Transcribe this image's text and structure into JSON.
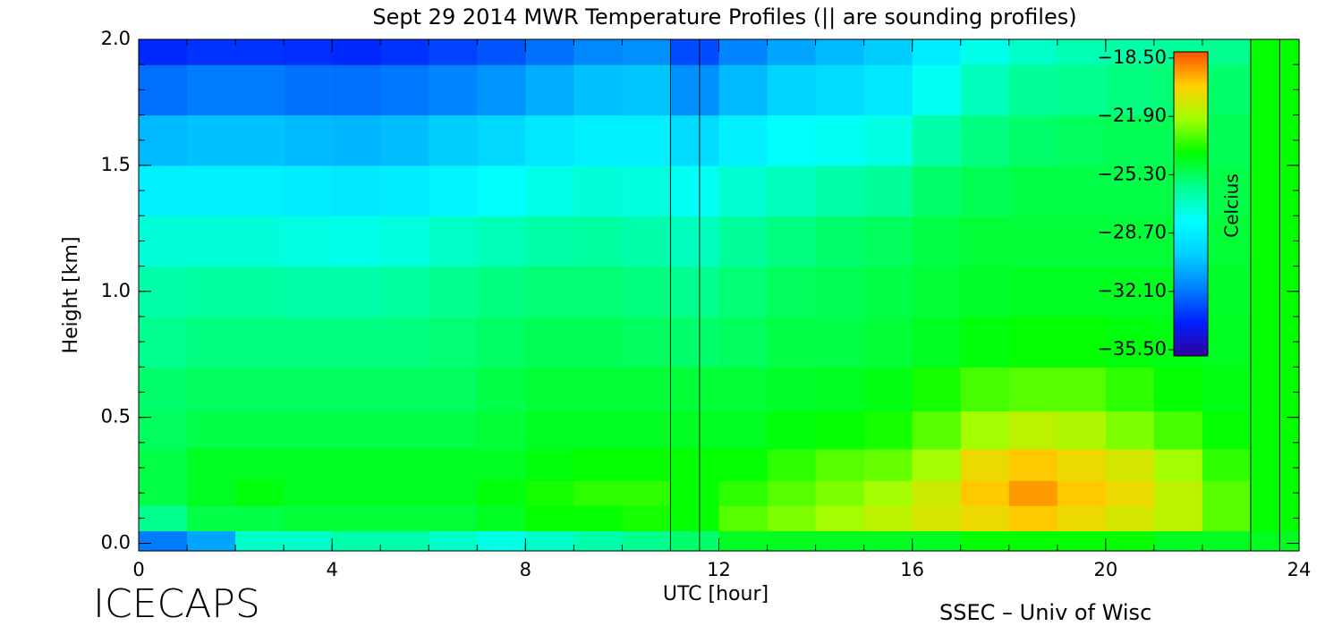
{
  "chart_data": {
    "type": "heatmap",
    "title": "Sept 29 2014 MWR Temperature Profiles (|| are sounding profiles)",
    "x_label": "UTC [hour]",
    "y_label": "Height [km]",
    "colorbar_label": "Celcius",
    "left_footer": "ICECAPS",
    "right_footer": "SSEC – Univ of Wisc",
    "xlim": [
      0,
      24
    ],
    "xticks": [
      0,
      4,
      8,
      12,
      16,
      20,
      24
    ],
    "xminorticks": [
      0,
      1,
      2,
      3,
      4,
      5,
      6,
      7,
      8,
      9,
      10,
      11,
      12,
      13,
      14,
      15,
      16,
      17,
      18,
      19,
      20,
      21,
      22,
      23,
      24
    ],
    "ylim": [
      -0.03,
      2.0
    ],
    "yticks": [
      {
        "value": 0,
        "label": "0.0"
      },
      0.5,
      {
        "value": 1,
        "label": "1.0"
      },
      1.5,
      {
        "value": 2,
        "label": "2.0"
      }
    ],
    "yminorticks": [
      0,
      0.1,
      0.2,
      0.3,
      0.4,
      0.5,
      0.6,
      0.7,
      0.8,
      0.9,
      1.0,
      1.1,
      1.2,
      1.3,
      1.4,
      1.5,
      1.6,
      1.7,
      1.8,
      1.9,
      2.0
    ],
    "clim": [
      -35.86,
      -18.14
    ],
    "cticks": [
      {
        "value": -18.5,
        "label": "−18.50"
      },
      {
        "value": -21.9,
        "label": "−21.90"
      },
      {
        "value": -25.3,
        "label": "−25.30"
      },
      {
        "value": -28.7,
        "label": "−28.70"
      },
      {
        "value": -32.1,
        "label": "−32.10"
      },
      {
        "value": -35.5,
        "label": "−35.50"
      }
    ],
    "colorscale": [
      "#3000a0",
      "#0020ff",
      "#0080ff",
      "#00d0ff",
      "#00ffff",
      "#00ff90",
      "#00ff00",
      "#a0ff00",
      "#ffd000",
      "#ff5000"
    ],
    "sounding_times": [
      11.0,
      11.6,
      23.0,
      23.6
    ],
    "x": [
      0.5,
      1.5,
      2.5,
      3.5,
      4.5,
      5.5,
      6.5,
      7.5,
      8.5,
      9.5,
      10.5,
      11.5,
      12.5,
      13.5,
      14.5,
      15.5,
      16.5,
      17.5,
      18.5,
      19.5,
      20.5,
      21.5,
      22.5,
      23.5
    ],
    "y": [
      0.0,
      0.1,
      0.2,
      0.3,
      0.45,
      0.6,
      0.8,
      1.0,
      1.2,
      1.4,
      1.6,
      1.8,
      2.0
    ],
    "values": [
      [
        -32,
        -31,
        -27,
        -27,
        -26.5,
        -26.5,
        -27,
        -27.5,
        -27,
        -26.5,
        -26,
        -25.5,
        -24.5,
        -24.5,
        -24.5,
        -24.5,
        -24.5,
        -24,
        -24,
        -24,
        -24,
        -24.5,
        -24.5,
        -24.5
      ],
      [
        -26,
        -25,
        -25,
        -24.8,
        -24.8,
        -24.8,
        -24.8,
        -24.5,
        -24,
        -24,
        -23.8,
        -24,
        -23,
        -22.5,
        -22,
        -21.5,
        -21,
        -20.5,
        -20,
        -20.5,
        -21,
        -21.5,
        -23,
        -24
      ],
      [
        -25,
        -24.5,
        -24.2,
        -24.5,
        -24.5,
        -24.5,
        -24.5,
        -24.2,
        -23.8,
        -23.5,
        -23.5,
        -24,
        -23.5,
        -23,
        -22.5,
        -22,
        -21.2,
        -20,
        -19.3,
        -20,
        -20.5,
        -21.5,
        -23,
        -24
      ],
      [
        -25,
        -24.5,
        -24.5,
        -24.5,
        -24.5,
        -24.5,
        -24.5,
        -24.5,
        -24.2,
        -24,
        -24,
        -24,
        -24,
        -23.5,
        -23,
        -22.8,
        -22,
        -20.5,
        -20,
        -20.5,
        -21,
        -22,
        -23.5,
        -24
      ],
      [
        -25.3,
        -25,
        -25,
        -25,
        -25,
        -25,
        -25,
        -24.8,
        -24.5,
        -24.5,
        -24.5,
        -24.5,
        -24.5,
        -24.2,
        -24,
        -23.8,
        -23,
        -22,
        -21.5,
        -21.8,
        -22.5,
        -23.2,
        -24,
        -24
      ],
      [
        -25.5,
        -25.3,
        -25.3,
        -25.3,
        -25.3,
        -25.3,
        -25.3,
        -25,
        -24.8,
        -24.8,
        -24.8,
        -24.8,
        -24.8,
        -24.6,
        -24.5,
        -24.3,
        -23.8,
        -23.2,
        -23,
        -23,
        -23.5,
        -24,
        -24.3,
        -24
      ],
      [
        -26,
        -25.8,
        -25.8,
        -25.8,
        -25.8,
        -25.8,
        -25.6,
        -25.4,
        -25.2,
        -25.2,
        -25.3,
        -25.5,
        -25.3,
        -25,
        -25,
        -24.8,
        -24.5,
        -24.2,
        -24,
        -24,
        -24.2,
        -24.3,
        -24.5,
        -24
      ],
      [
        -26.5,
        -26.3,
        -26.3,
        -26.5,
        -26.5,
        -26.3,
        -26,
        -25.8,
        -25.6,
        -25.6,
        -25.8,
        -26,
        -25.6,
        -25.3,
        -25.2,
        -25,
        -24.8,
        -24.6,
        -24.5,
        -24.5,
        -24.5,
        -24.5,
        -24.6,
        -24
      ],
      [
        -27.3,
        -27.3,
        -27.3,
        -27.5,
        -27.6,
        -27.4,
        -27,
        -26.7,
        -26.4,
        -26.3,
        -26.5,
        -26.8,
        -26.2,
        -25.8,
        -25.5,
        -25.3,
        -25,
        -24.8,
        -24.8,
        -24.8,
        -24.8,
        -24.8,
        -24.8,
        -24
      ],
      [
        -28.6,
        -28.6,
        -28.6,
        -28.8,
        -28.9,
        -28.7,
        -28.4,
        -28,
        -27.6,
        -27.3,
        -27.4,
        -27.8,
        -27.2,
        -26.8,
        -26.5,
        -26.2,
        -25.5,
        -25.2,
        -25,
        -25,
        -25,
        -25,
        -25,
        -24
      ],
      [
        -30.5,
        -30.3,
        -30.3,
        -30.5,
        -30.6,
        -30.4,
        -30,
        -29.6,
        -29,
        -28.6,
        -28.6,
        -29.5,
        -28.6,
        -28,
        -27.8,
        -27.5,
        -26.5,
        -25.8,
        -25.5,
        -25.3,
        -25.2,
        -25.2,
        -25.2,
        -24
      ],
      [
        -32.3,
        -32,
        -32,
        -32.2,
        -32.3,
        -32.1,
        -31.8,
        -31.4,
        -30.8,
        -30.3,
        -30.2,
        -31.5,
        -30.5,
        -29.8,
        -29.4,
        -29,
        -27.8,
        -26.8,
        -26.2,
        -26,
        -25.8,
        -25.6,
        -25.5,
        -24
      ],
      [
        -33.7,
        -33.5,
        -33.5,
        -33.6,
        -33.7,
        -33.5,
        -33.2,
        -32.8,
        -32.2,
        -31.7,
        -31.5,
        -33,
        -31.8,
        -31,
        -30.5,
        -30,
        -28.8,
        -27.6,
        -27,
        -26.6,
        -26.4,
        -26.2,
        -26,
        -24
      ]
    ]
  }
}
